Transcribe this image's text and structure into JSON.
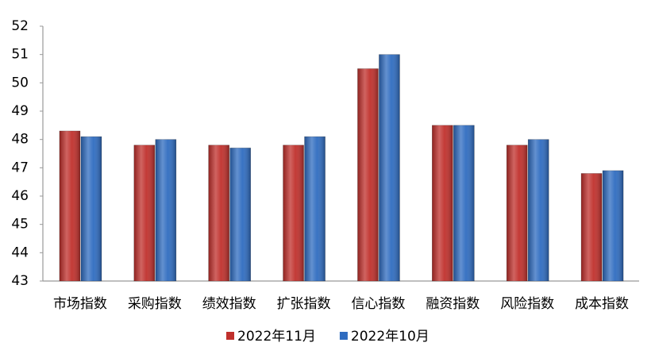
{
  "chart_data": {
    "type": "bar",
    "categories": [
      "市场指数",
      "采购指数",
      "绩效指数",
      "扩张指数",
      "信心指数",
      "融资指数",
      "风险指数",
      "成本指数"
    ],
    "series": [
      {
        "name": "2022年11月",
        "color": "#c0302c",
        "values": [
          48.3,
          47.8,
          47.8,
          47.8,
          50.5,
          48.5,
          47.8,
          46.8
        ]
      },
      {
        "name": "2022年10月",
        "color": "#2f6cc0",
        "values": [
          48.1,
          48.0,
          47.7,
          48.1,
          51.0,
          48.5,
          48.0,
          46.9
        ]
      }
    ],
    "ylim": [
      43,
      52
    ],
    "yticks": [
      43,
      44,
      45,
      46,
      47,
      48,
      49,
      50,
      51,
      52
    ],
    "grid": false,
    "legend": "bottom"
  }
}
